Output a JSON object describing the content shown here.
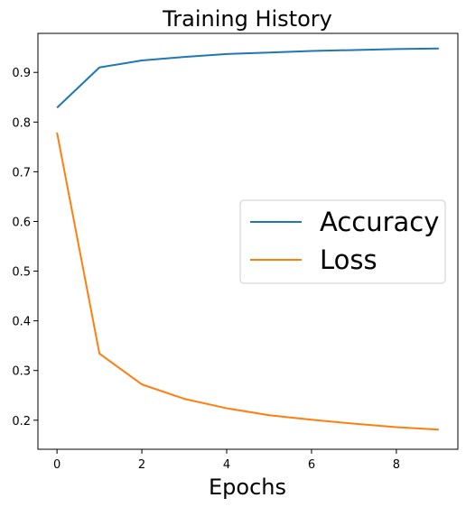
{
  "chart_data": {
    "type": "line",
    "title": "Training History",
    "xlabel": "Epochs",
    "ylabel": "",
    "x": [
      0,
      1,
      2,
      3,
      4,
      5,
      6,
      7,
      8,
      9
    ],
    "xlim": [
      -0.45,
      9.45
    ],
    "ylim": [
      0.1415,
      0.9785
    ],
    "xticks": [
      0,
      2,
      4,
      6,
      8
    ],
    "yticks": [
      0.2,
      0.3,
      0.4,
      0.5,
      0.6,
      0.7,
      0.8,
      0.9
    ],
    "grid": false,
    "legend_position": "center-right",
    "series": [
      {
        "name": "Accuracy",
        "color": "#1f77b4",
        "values": [
          0.829,
          0.91,
          0.924,
          0.931,
          0.937,
          0.94,
          0.943,
          0.945,
          0.947,
          0.948
        ]
      },
      {
        "name": "Loss",
        "color": "#ff7f0e",
        "values": [
          0.779,
          0.334,
          0.272,
          0.243,
          0.224,
          0.21,
          0.201,
          0.193,
          0.186,
          0.181
        ]
      }
    ]
  }
}
